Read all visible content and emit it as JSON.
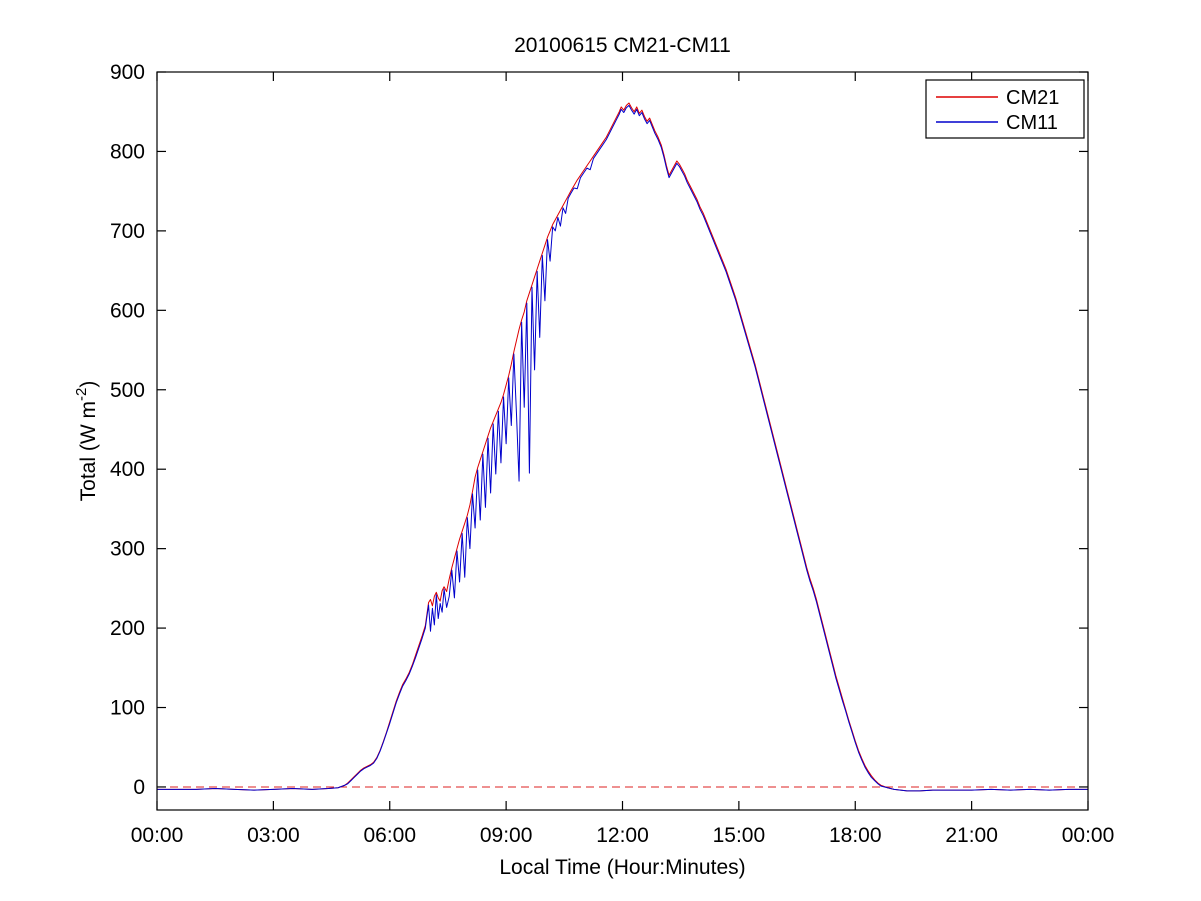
{
  "figure": {
    "background": "#ffffff"
  },
  "chart_data": {
    "type": "line",
    "title": "20100615 CM21-CM11",
    "xlabel": "Local Time (Hour:Minutes)",
    "ylabel": "Total (W m^-2)",
    "ylabel_parts": {
      "main": "Total (W m",
      "sup": "-2",
      "close": ")"
    },
    "axes": {
      "xlim_minutes": [
        0,
        1440
      ],
      "ylim": [
        -29,
        900
      ],
      "grid": false,
      "box": true,
      "axis_color": "#000000"
    },
    "x_ticks": {
      "minutes": [
        0,
        180,
        360,
        540,
        720,
        900,
        1080,
        1260,
        1440
      ],
      "labels": [
        "00:00",
        "03:00",
        "06:00",
        "09:00",
        "12:00",
        "15:00",
        "18:00",
        "21:00",
        "00:00"
      ]
    },
    "y_ticks": [
      0,
      100,
      200,
      300,
      400,
      500,
      600,
      700,
      800,
      900
    ],
    "legend": {
      "position": "top-right",
      "entries": [
        {
          "label": "CM21",
          "color": "#dd0000"
        },
        {
          "label": "CM11",
          "color": "#0000cc"
        }
      ]
    },
    "zero_line": {
      "value": 0,
      "color": "#dd2222",
      "dash": true
    },
    "points_format": [
      "minutes_local_time",
      "CM21 (W m-2)",
      "CM11 (W m-2)"
    ],
    "points": [
      [
        0,
        -3,
        -3
      ],
      [
        30,
        -3,
        -3
      ],
      [
        60,
        -3,
        -3
      ],
      [
        90,
        -2,
        -2
      ],
      [
        120,
        -3,
        -3
      ],
      [
        150,
        -4,
        -4
      ],
      [
        180,
        -3,
        -3
      ],
      [
        210,
        -2,
        -2
      ],
      [
        240,
        -3,
        -3
      ],
      [
        265,
        -2,
        -2
      ],
      [
        280,
        -1,
        -1
      ],
      [
        290,
        2,
        2
      ],
      [
        295,
        5,
        4
      ],
      [
        300,
        9,
        8
      ],
      [
        305,
        13,
        12
      ],
      [
        310,
        17,
        16
      ],
      [
        315,
        21,
        20
      ],
      [
        320,
        24,
        23
      ],
      [
        325,
        26,
        25
      ],
      [
        330,
        28,
        27
      ],
      [
        335,
        31,
        30
      ],
      [
        340,
        37,
        36
      ],
      [
        345,
        46,
        45
      ],
      [
        350,
        57,
        56
      ],
      [
        355,
        69,
        68
      ],
      [
        360,
        82,
        80
      ],
      [
        365,
        95,
        93
      ],
      [
        370,
        108,
        106
      ],
      [
        375,
        119,
        117
      ],
      [
        380,
        129,
        127
      ],
      [
        385,
        136,
        134
      ],
      [
        390,
        144,
        142
      ],
      [
        395,
        154,
        152
      ],
      [
        400,
        166,
        163
      ],
      [
        405,
        178,
        175
      ],
      [
        410,
        190,
        187
      ],
      [
        415,
        203,
        200
      ],
      [
        420,
        232,
        229
      ],
      [
        423,
        236,
        196
      ],
      [
        426,
        228,
        225
      ],
      [
        429,
        240,
        204
      ],
      [
        432,
        245,
        242
      ],
      [
        435,
        238,
        212
      ],
      [
        438,
        234,
        231
      ],
      [
        441,
        247,
        220
      ],
      [
        444,
        252,
        249
      ],
      [
        448,
        246,
        226
      ],
      [
        452,
        262,
        240
      ],
      [
        456,
        276,
        273
      ],
      [
        460,
        288,
        238
      ],
      [
        464,
        300,
        297
      ],
      [
        468,
        312,
        258
      ],
      [
        472,
        322,
        319
      ],
      [
        476,
        332,
        264
      ],
      [
        480,
        342,
        339
      ],
      [
        484,
        355,
        300
      ],
      [
        488,
        372,
        369
      ],
      [
        492,
        390,
        326
      ],
      [
        496,
        402,
        399
      ],
      [
        500,
        412,
        336
      ],
      [
        504,
        422,
        419
      ],
      [
        508,
        432,
        352
      ],
      [
        512,
        442,
        439
      ],
      [
        516,
        452,
        370
      ],
      [
        520,
        460,
        457
      ],
      [
        524,
        468,
        394
      ],
      [
        528,
        476,
        473
      ],
      [
        532,
        484,
        408
      ],
      [
        536,
        494,
        491
      ],
      [
        540,
        506,
        432
      ],
      [
        544,
        518,
        515
      ],
      [
        548,
        532,
        455
      ],
      [
        552,
        548,
        545
      ],
      [
        556,
        562,
        470
      ],
      [
        560,
        576,
        385
      ],
      [
        564,
        588,
        585
      ],
      [
        568,
        598,
        478
      ],
      [
        572,
        612,
        609
      ],
      [
        576,
        622,
        395
      ],
      [
        580,
        632,
        629
      ],
      [
        584,
        642,
        525
      ],
      [
        588,
        652,
        649
      ],
      [
        592,
        662,
        566
      ],
      [
        596,
        672,
        669
      ],
      [
        600,
        682,
        612
      ],
      [
        604,
        692,
        689
      ],
      [
        608,
        700,
        662
      ],
      [
        612,
        708,
        705
      ],
      [
        616,
        714,
        700
      ],
      [
        620,
        720,
        717
      ],
      [
        624,
        726,
        706
      ],
      [
        628,
        732,
        729
      ],
      [
        632,
        738,
        722
      ],
      [
        636,
        744,
        741
      ],
      [
        640,
        750,
        747
      ],
      [
        645,
        757,
        754
      ],
      [
        650,
        764,
        753
      ],
      [
        655,
        770,
        767
      ],
      [
        660,
        776,
        773
      ],
      [
        665,
        782,
        779
      ],
      [
        670,
        788,
        777
      ],
      [
        675,
        794,
        791
      ],
      [
        680,
        800,
        797
      ],
      [
        685,
        806,
        803
      ],
      [
        690,
        812,
        809
      ],
      [
        695,
        818,
        815
      ],
      [
        700,
        826,
        823
      ],
      [
        705,
        834,
        831
      ],
      [
        710,
        842,
        839
      ],
      [
        715,
        850,
        847
      ],
      [
        718,
        856,
        853
      ],
      [
        722,
        852,
        849
      ],
      [
        726,
        858,
        855
      ],
      [
        730,
        861,
        858
      ],
      [
        734,
        855,
        852
      ],
      [
        738,
        850,
        847
      ],
      [
        742,
        856,
        853
      ],
      [
        746,
        848,
        845
      ],
      [
        750,
        852,
        849
      ],
      [
        754,
        844,
        841
      ],
      [
        758,
        838,
        835
      ],
      [
        762,
        842,
        839
      ],
      [
        766,
        834,
        831
      ],
      [
        770,
        826,
        823
      ],
      [
        775,
        818,
        815
      ],
      [
        780,
        808,
        805
      ],
      [
        784,
        796,
        793
      ],
      [
        788,
        782,
        779
      ],
      [
        792,
        770,
        767
      ],
      [
        796,
        776,
        773
      ],
      [
        800,
        782,
        779
      ],
      [
        804,
        788,
        785
      ],
      [
        808,
        784,
        781
      ],
      [
        812,
        778,
        775
      ],
      [
        816,
        772,
        769
      ],
      [
        820,
        764,
        761
      ],
      [
        825,
        756,
        753
      ],
      [
        830,
        748,
        745
      ],
      [
        835,
        740,
        737
      ],
      [
        840,
        730,
        727
      ],
      [
        845,
        722,
        719
      ],
      [
        850,
        712,
        709
      ],
      [
        855,
        702,
        699
      ],
      [
        860,
        692,
        689
      ],
      [
        865,
        682,
        679
      ],
      [
        870,
        672,
        669
      ],
      [
        875,
        662,
        659
      ],
      [
        880,
        652,
        649
      ],
      [
        885,
        640,
        637
      ],
      [
        890,
        628,
        625
      ],
      [
        895,
        616,
        613
      ],
      [
        900,
        602,
        599
      ],
      [
        905,
        588,
        585
      ],
      [
        910,
        574,
        571
      ],
      [
        915,
        560,
        557
      ],
      [
        920,
        546,
        543
      ],
      [
        925,
        532,
        529
      ],
      [
        930,
        516,
        513
      ],
      [
        935,
        500,
        497
      ],
      [
        940,
        484,
        481
      ],
      [
        945,
        468,
        465
      ],
      [
        950,
        452,
        449
      ],
      [
        955,
        436,
        433
      ],
      [
        960,
        420,
        417
      ],
      [
        965,
        404,
        401
      ],
      [
        970,
        388,
        385
      ],
      [
        975,
        372,
        369
      ],
      [
        980,
        356,
        353
      ],
      [
        985,
        340,
        337
      ],
      [
        990,
        324,
        321
      ],
      [
        995,
        308,
        305
      ],
      [
        1000,
        292,
        289
      ],
      [
        1005,
        276,
        273
      ],
      [
        1010,
        262,
        259
      ],
      [
        1015,
        250,
        247
      ],
      [
        1020,
        236,
        233
      ],
      [
        1025,
        220,
        217
      ],
      [
        1030,
        204,
        201
      ],
      [
        1035,
        188,
        185
      ],
      [
        1040,
        172,
        169
      ],
      [
        1045,
        156,
        153
      ],
      [
        1050,
        140,
        137
      ],
      [
        1055,
        126,
        123
      ],
      [
        1060,
        112,
        109
      ],
      [
        1065,
        98,
        96
      ],
      [
        1070,
        84,
        82
      ],
      [
        1075,
        71,
        69
      ],
      [
        1080,
        58,
        56
      ],
      [
        1085,
        46,
        44
      ],
      [
        1090,
        36,
        34
      ],
      [
        1095,
        27,
        25
      ],
      [
        1100,
        20,
        18
      ],
      [
        1105,
        14,
        12
      ],
      [
        1110,
        9,
        8
      ],
      [
        1115,
        5,
        4
      ],
      [
        1120,
        2,
        1
      ],
      [
        1130,
        -1,
        -1
      ],
      [
        1140,
        -3,
        -3
      ],
      [
        1150,
        -4,
        -4
      ],
      [
        1160,
        -5,
        -5
      ],
      [
        1180,
        -5,
        -5
      ],
      [
        1200,
        -4,
        -4
      ],
      [
        1230,
        -4,
        -4
      ],
      [
        1260,
        -4,
        -4
      ],
      [
        1290,
        -3,
        -3
      ],
      [
        1320,
        -4,
        -4
      ],
      [
        1350,
        -3,
        -3
      ],
      [
        1380,
        -4,
        -4
      ],
      [
        1410,
        -3,
        -3
      ],
      [
        1440,
        -3,
        -3
      ]
    ]
  }
}
